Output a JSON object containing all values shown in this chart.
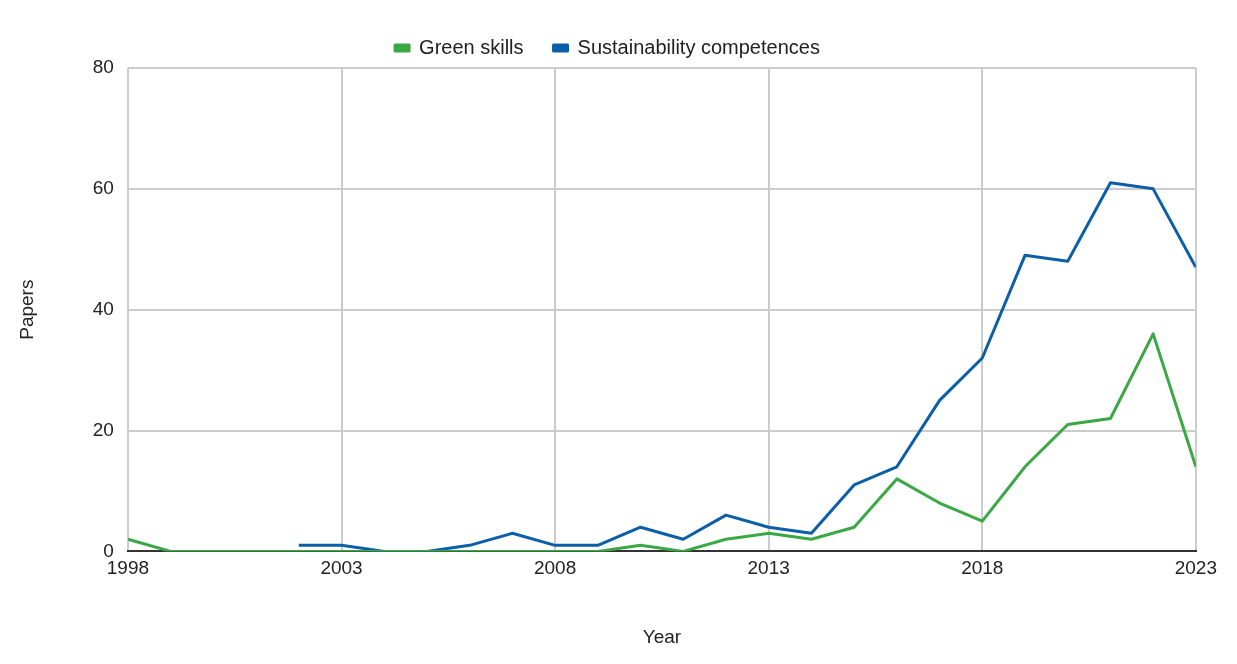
{
  "chart_data": {
    "type": "line",
    "xlabel": "Year",
    "ylabel": "Papers",
    "xlim": [
      1998,
      2023
    ],
    "xticks": [
      1998,
      2003,
      2008,
      2013,
      2018,
      2023
    ],
    "ylim": [
      0,
      80
    ],
    "yticks": [
      0,
      20,
      40,
      60,
      80
    ],
    "grid": true,
    "legend": "top",
    "marker": "none",
    "line_style": "solid",
    "series": [
      {
        "name": "Green skills",
        "color": "#3aa845",
        "x": [
          1998,
          1999,
          2000,
          2001,
          2002,
          2003,
          2004,
          2005,
          2006,
          2007,
          2008,
          2009,
          2010,
          2011,
          2012,
          2013,
          2014,
          2015,
          2016,
          2017,
          2018,
          2019,
          2020,
          2021,
          2022,
          2023
        ],
        "values": [
          2,
          0,
          0,
          0,
          0,
          0,
          0,
          0,
          0,
          0,
          0,
          0,
          1,
          0,
          2,
          3,
          2,
          4,
          12,
          8,
          5,
          14,
          21,
          22,
          36,
          14
        ]
      },
      {
        "name": "Sustainability competences",
        "color": "#0b5ea8",
        "x": [
          2002,
          2003,
          2004,
          2005,
          2006,
          2007,
          2008,
          2009,
          2010,
          2011,
          2012,
          2013,
          2014,
          2015,
          2016,
          2017,
          2018,
          2019,
          2020,
          2021,
          2022,
          2023
        ],
        "values": [
          1,
          1,
          0,
          0,
          1,
          3,
          1,
          1,
          4,
          2,
          6,
          4,
          3,
          11,
          14,
          25,
          32,
          49,
          48,
          61,
          60,
          47
        ]
      }
    ]
  }
}
